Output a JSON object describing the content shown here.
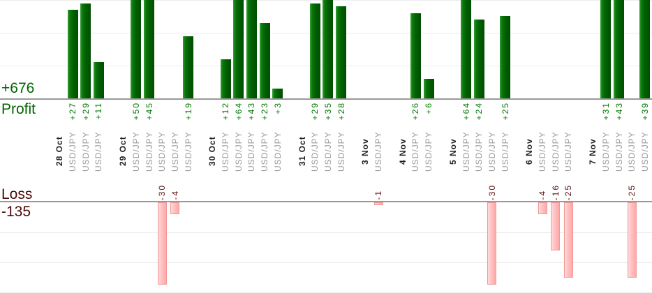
{
  "chart_data": {
    "type": "bar",
    "title": "",
    "xlabel": "",
    "ylabel": "",
    "layout": {
      "panels": [
        "profit (top, clipped above +30)",
        "loss (bottom, clipped below -27)"
      ],
      "grid": "on",
      "bar_labels_rotated": true
    },
    "profit": {
      "axis_label": "Profit",
      "total_label": "+676",
      "total": 676,
      "ylim": [
        0,
        30
      ],
      "gridlines": [
        10,
        20,
        30
      ]
    },
    "loss": {
      "axis_label": "Loss",
      "total_label": "-135",
      "total": -135,
      "ylim": [
        -30,
        0
      ],
      "gridlines": [
        -10,
        -20,
        -30
      ]
    },
    "groups": [
      {
        "date": "28 Oct",
        "trades": [
          {
            "symbol": "USD/JPY",
            "label": "+27",
            "value": 27
          },
          {
            "symbol": "USD/JPY",
            "label": "+29",
            "value": 29
          },
          {
            "symbol": "USD/JPY",
            "label": "+11",
            "value": 11
          }
        ]
      },
      {
        "date": "29 Oct",
        "trades": [
          {
            "symbol": "USD/JPY",
            "label": "+50",
            "value": 50
          },
          {
            "symbol": "USD/JPY",
            "label": "+45",
            "value": 45
          },
          {
            "symbol": "USD/JPY",
            "label": "-30",
            "value": -30
          },
          {
            "symbol": "USD/JPY",
            "label": "-4",
            "value": -4
          },
          {
            "symbol": "USD/JPY",
            "label": "+19",
            "value": 19
          }
        ]
      },
      {
        "date": "30 Oct",
        "trades": [
          {
            "symbol": "USD/JPY",
            "label": "+12",
            "value": 12
          },
          {
            "symbol": "USD/JPY",
            "label": "+64",
            "value": 64
          },
          {
            "symbol": "USD/JPY",
            "label": "+43",
            "value": 43
          },
          {
            "symbol": "USD/JPY",
            "label": "+23",
            "value": 23
          },
          {
            "symbol": "USD/JPY",
            "label": "+3",
            "value": 3
          }
        ]
      },
      {
        "date": "31 Oct",
        "trades": [
          {
            "symbol": "USD/JPY",
            "label": "+29",
            "value": 29
          },
          {
            "symbol": "USD/JPY",
            "label": "+35",
            "value": 35
          },
          {
            "symbol": "USD/JPY",
            "label": "+28",
            "value": 28
          }
        ]
      },
      {
        "date": "3 Nov",
        "trades": [
          {
            "symbol": "USD/JPY",
            "label": "-1",
            "value": -1
          }
        ]
      },
      {
        "date": "4 Nov",
        "trades": [
          {
            "symbol": "USD/JPY",
            "label": "+26",
            "value": 26
          },
          {
            "symbol": "USD/JPY",
            "label": "+6",
            "value": 6
          }
        ]
      },
      {
        "date": "5 Nov",
        "trades": [
          {
            "symbol": "USD/JPY",
            "label": "+64",
            "value": 64
          },
          {
            "symbol": "USD/JPY",
            "label": "+24",
            "value": 24
          },
          {
            "symbol": "USD/JPY",
            "label": "-30",
            "value": -30
          },
          {
            "symbol": "USD/JPY",
            "label": "+25",
            "value": 25
          }
        ]
      },
      {
        "date": "6 Nov",
        "trades": [
          {
            "symbol": "USD/JPY",
            "label": "-4",
            "value": -4
          },
          {
            "symbol": "USD/JPY",
            "label": "-16",
            "value": -16
          },
          {
            "symbol": "USD/JPY",
            "label": "-25",
            "value": -25
          }
        ]
      },
      {
        "date": "7 Nov",
        "trades": [
          {
            "symbol": "USD/JPY",
            "label": "+31",
            "value": 31
          },
          {
            "symbol": "USD/JPY",
            "label": "+43",
            "value": 43
          },
          {
            "symbol": "USD/JPY",
            "label": "-25",
            "value": -25
          },
          {
            "symbol": "USD/JPY",
            "label": "+39",
            "value": 39
          }
        ]
      }
    ],
    "colors": {
      "profit_bar_gradient": [
        "#35a035",
        "#0b760b",
        "#015f01",
        "#014e01"
      ],
      "loss_bar_gradient": [
        "#ffdbdb",
        "#ffc0c0",
        "#ffa8a8"
      ],
      "loss_bar_border": "#f19898",
      "profit_text": "#006600",
      "loss_text": "#4c0808",
      "profit_value_text": "#007a00",
      "loss_value_text": "#5c1111",
      "date_text": "#1f1f1f",
      "symbol_text": "#9b9b9b",
      "axis_line": "#999999",
      "gridline": "#ececec"
    }
  }
}
